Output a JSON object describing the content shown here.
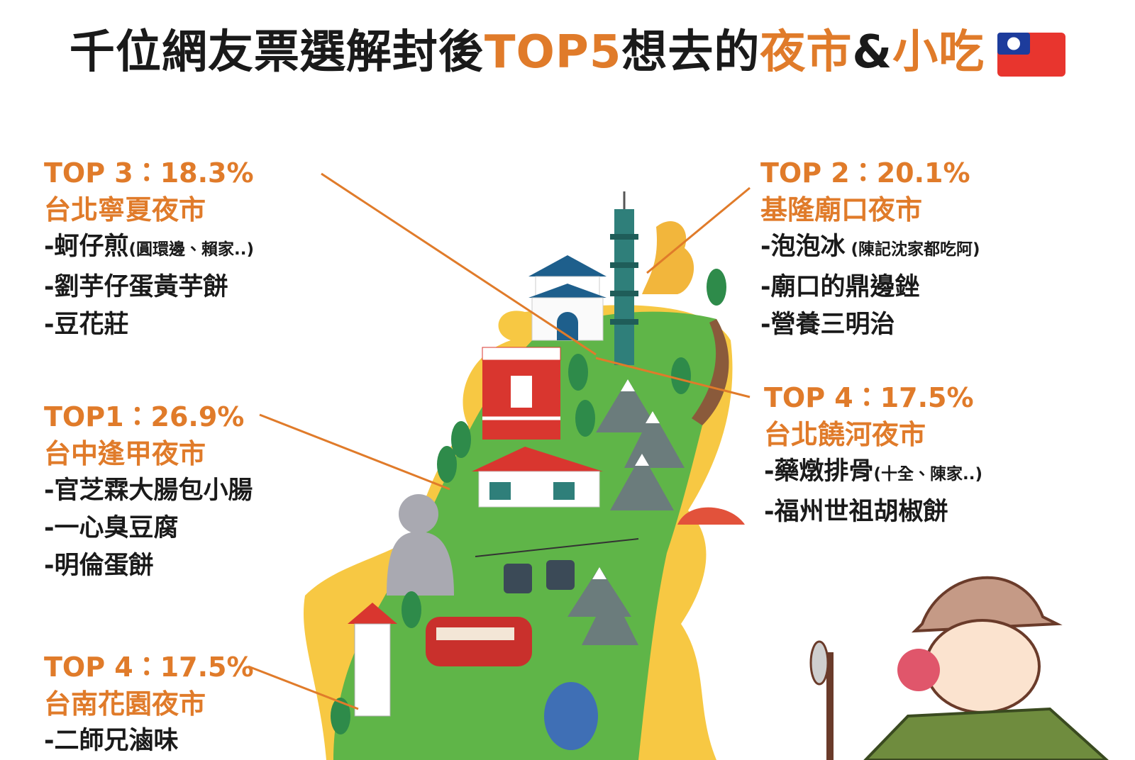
{
  "header": {
    "title_parts": [
      "千位網友票選解封後",
      "TOP5",
      "想去的",
      "夜市",
      "&",
      "小吃"
    ]
  },
  "entries": [
    {
      "rank": "TOP 3：18.3%",
      "name": "台北寧夏夜市",
      "items": [
        {
          "text": "-蚵仔煎",
          "note": "(圓環邊、賴家..)"
        },
        {
          "text": "-劉芋仔蛋黃芋餅"
        },
        {
          "text": "-豆花莊"
        }
      ]
    },
    {
      "rank": "TOP 2：20.1%",
      "name": "基隆廟口夜市",
      "items": [
        {
          "text": "-泡泡冰",
          "note": " (陳記沈家都吃阿)"
        },
        {
          "text": "-廟口的鼎邊銼"
        },
        {
          "text": "-營養三明治"
        }
      ]
    },
    {
      "rank": "TOP1：26.9%",
      "name": "台中逢甲夜市",
      "items": [
        {
          "text": "-官芝霖大腸包小腸"
        },
        {
          "text": "-一心臭豆腐"
        },
        {
          "text": "-明倫蛋餅"
        }
      ]
    },
    {
      "rank": "TOP 4：17.5%",
      "name": "台北饒河夜市",
      "items": [
        {
          "text": "-藥燉排骨",
          "note": "(十全、陳家..)"
        },
        {
          "text": "-福州世祖胡椒餅"
        }
      ]
    },
    {
      "rank": "TOP 4：17.5%",
      "name": "台南花園夜市",
      "items": [
        {
          "text": "-二師兄滷味"
        }
      ]
    }
  ]
}
